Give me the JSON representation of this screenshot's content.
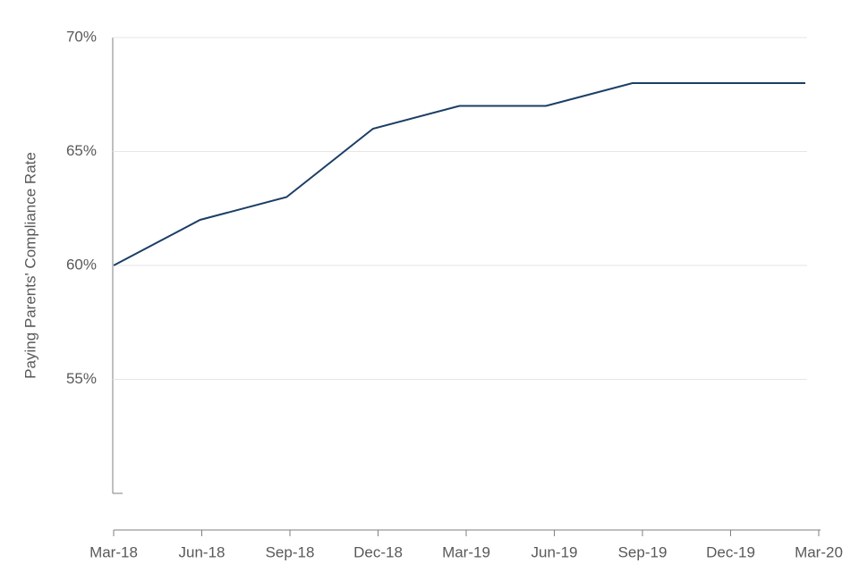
{
  "chart_data": {
    "type": "line",
    "y_label": "Paying Parents' Compliance Rate",
    "categories": [
      "Mar-18",
      "Jun-18",
      "Sep-18",
      "Dec-18",
      "Mar-19",
      "Jun-19",
      "Sep-19",
      "Dec-19",
      "Mar-20"
    ],
    "series": [
      {
        "name": "Compliance rate",
        "color": "#1b3e66",
        "values": [
          60,
          62,
          63,
          66,
          67,
          67,
          68,
          68,
          68
        ]
      }
    ],
    "ylim": [
      50,
      70
    ],
    "yticks": [
      {
        "value": 55,
        "label": "55%"
      },
      {
        "value": 60,
        "label": "60%"
      },
      {
        "value": 65,
        "label": "65%"
      },
      {
        "value": 70,
        "label": "70%"
      }
    ],
    "grid": true
  }
}
